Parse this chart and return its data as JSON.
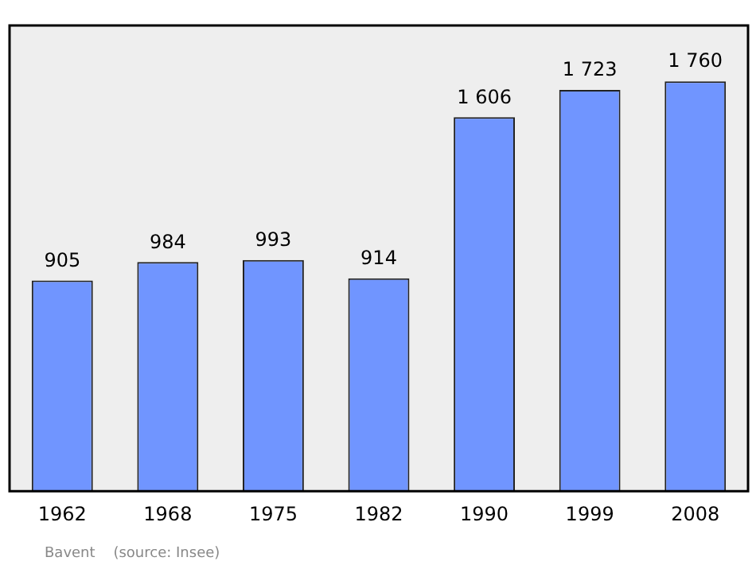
{
  "chart_data": {
    "type": "bar",
    "categories": [
      "1962",
      "1968",
      "1975",
      "1982",
      "1990",
      "1999",
      "2008"
    ],
    "values": [
      905,
      984,
      993,
      914,
      1606,
      1723,
      1760
    ],
    "value_labels": [
      "905",
      "984",
      "993",
      "914",
      "1 606",
      "1 723",
      "1 760"
    ],
    "color": "#7095ff",
    "annotations": [
      "Bavent    (source: Insee)"
    ]
  }
}
